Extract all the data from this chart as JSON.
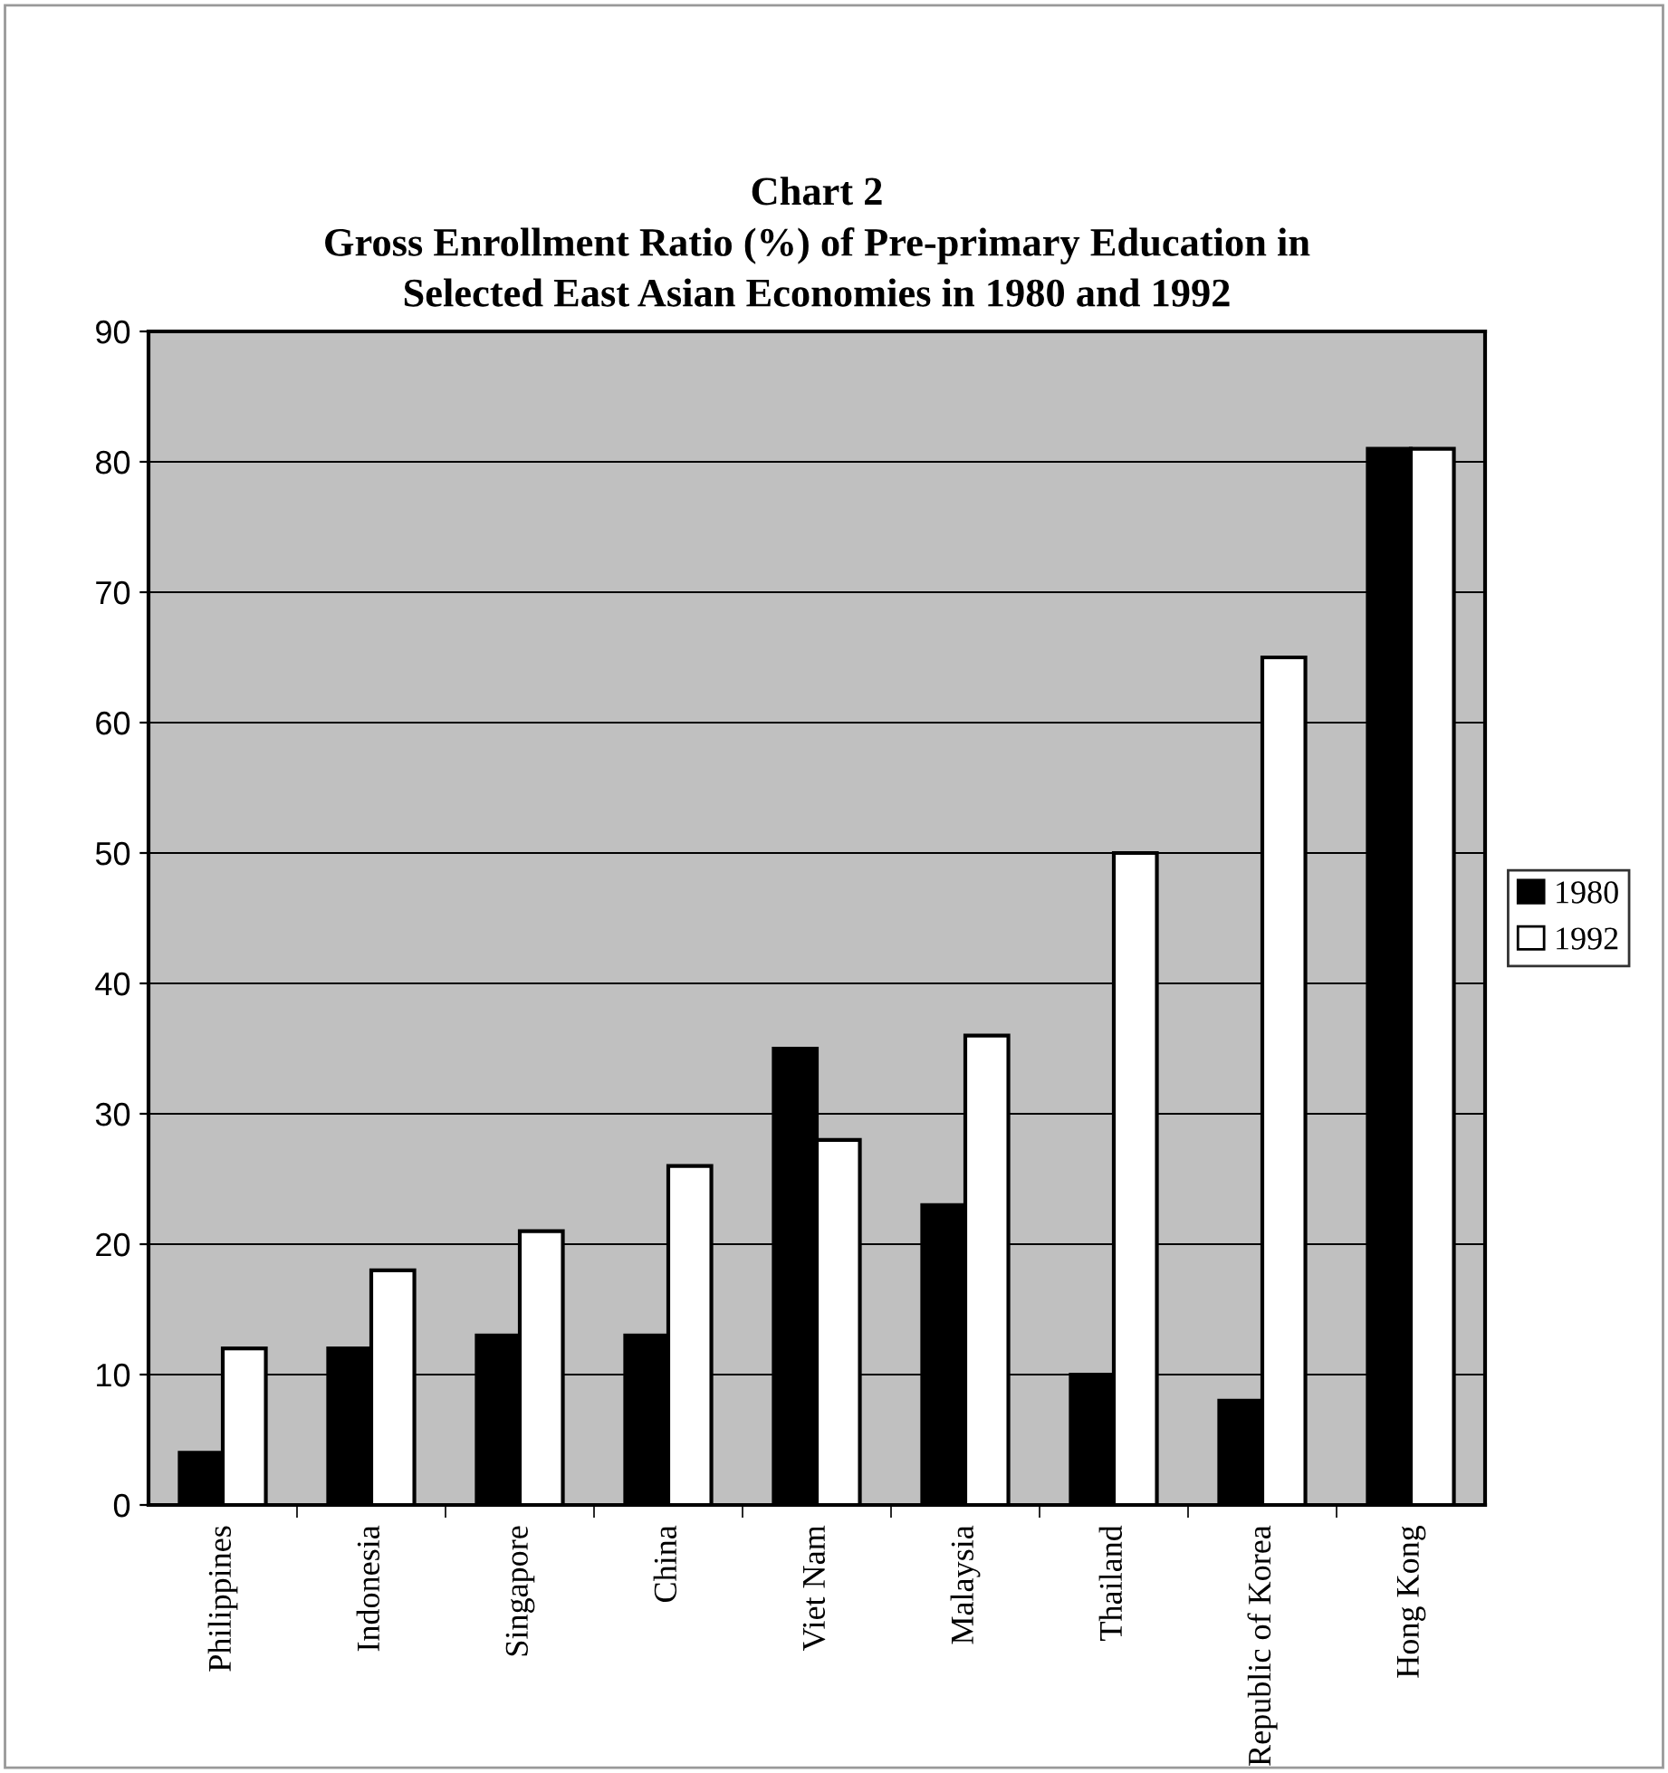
{
  "chart_data": {
    "type": "bar",
    "title": "Chart 2\nGross Enrollment Ratio (%) of Pre-primary Education in\nSelected East Asian Economies in 1980 and 1992",
    "categories": [
      "Philippines",
      "Indonesia",
      "Singapore",
      "China",
      "Viet Nam",
      "Malaysia",
      "Thailand",
      "Republic of Korea",
      "Hong Kong"
    ],
    "series": [
      {
        "name": "1980",
        "color": "#000000",
        "values": [
          4,
          12,
          13,
          13,
          35,
          23,
          10,
          8,
          81
        ]
      },
      {
        "name": "1992",
        "color": "#ffffff",
        "values": [
          12,
          18,
          21,
          26,
          28,
          36,
          50,
          65,
          81
        ]
      }
    ],
    "ylim": [
      0,
      90
    ],
    "yticks": [
      0,
      10,
      20,
      30,
      40,
      50,
      60,
      70,
      80,
      90
    ],
    "grid": "y",
    "legend": "right"
  }
}
